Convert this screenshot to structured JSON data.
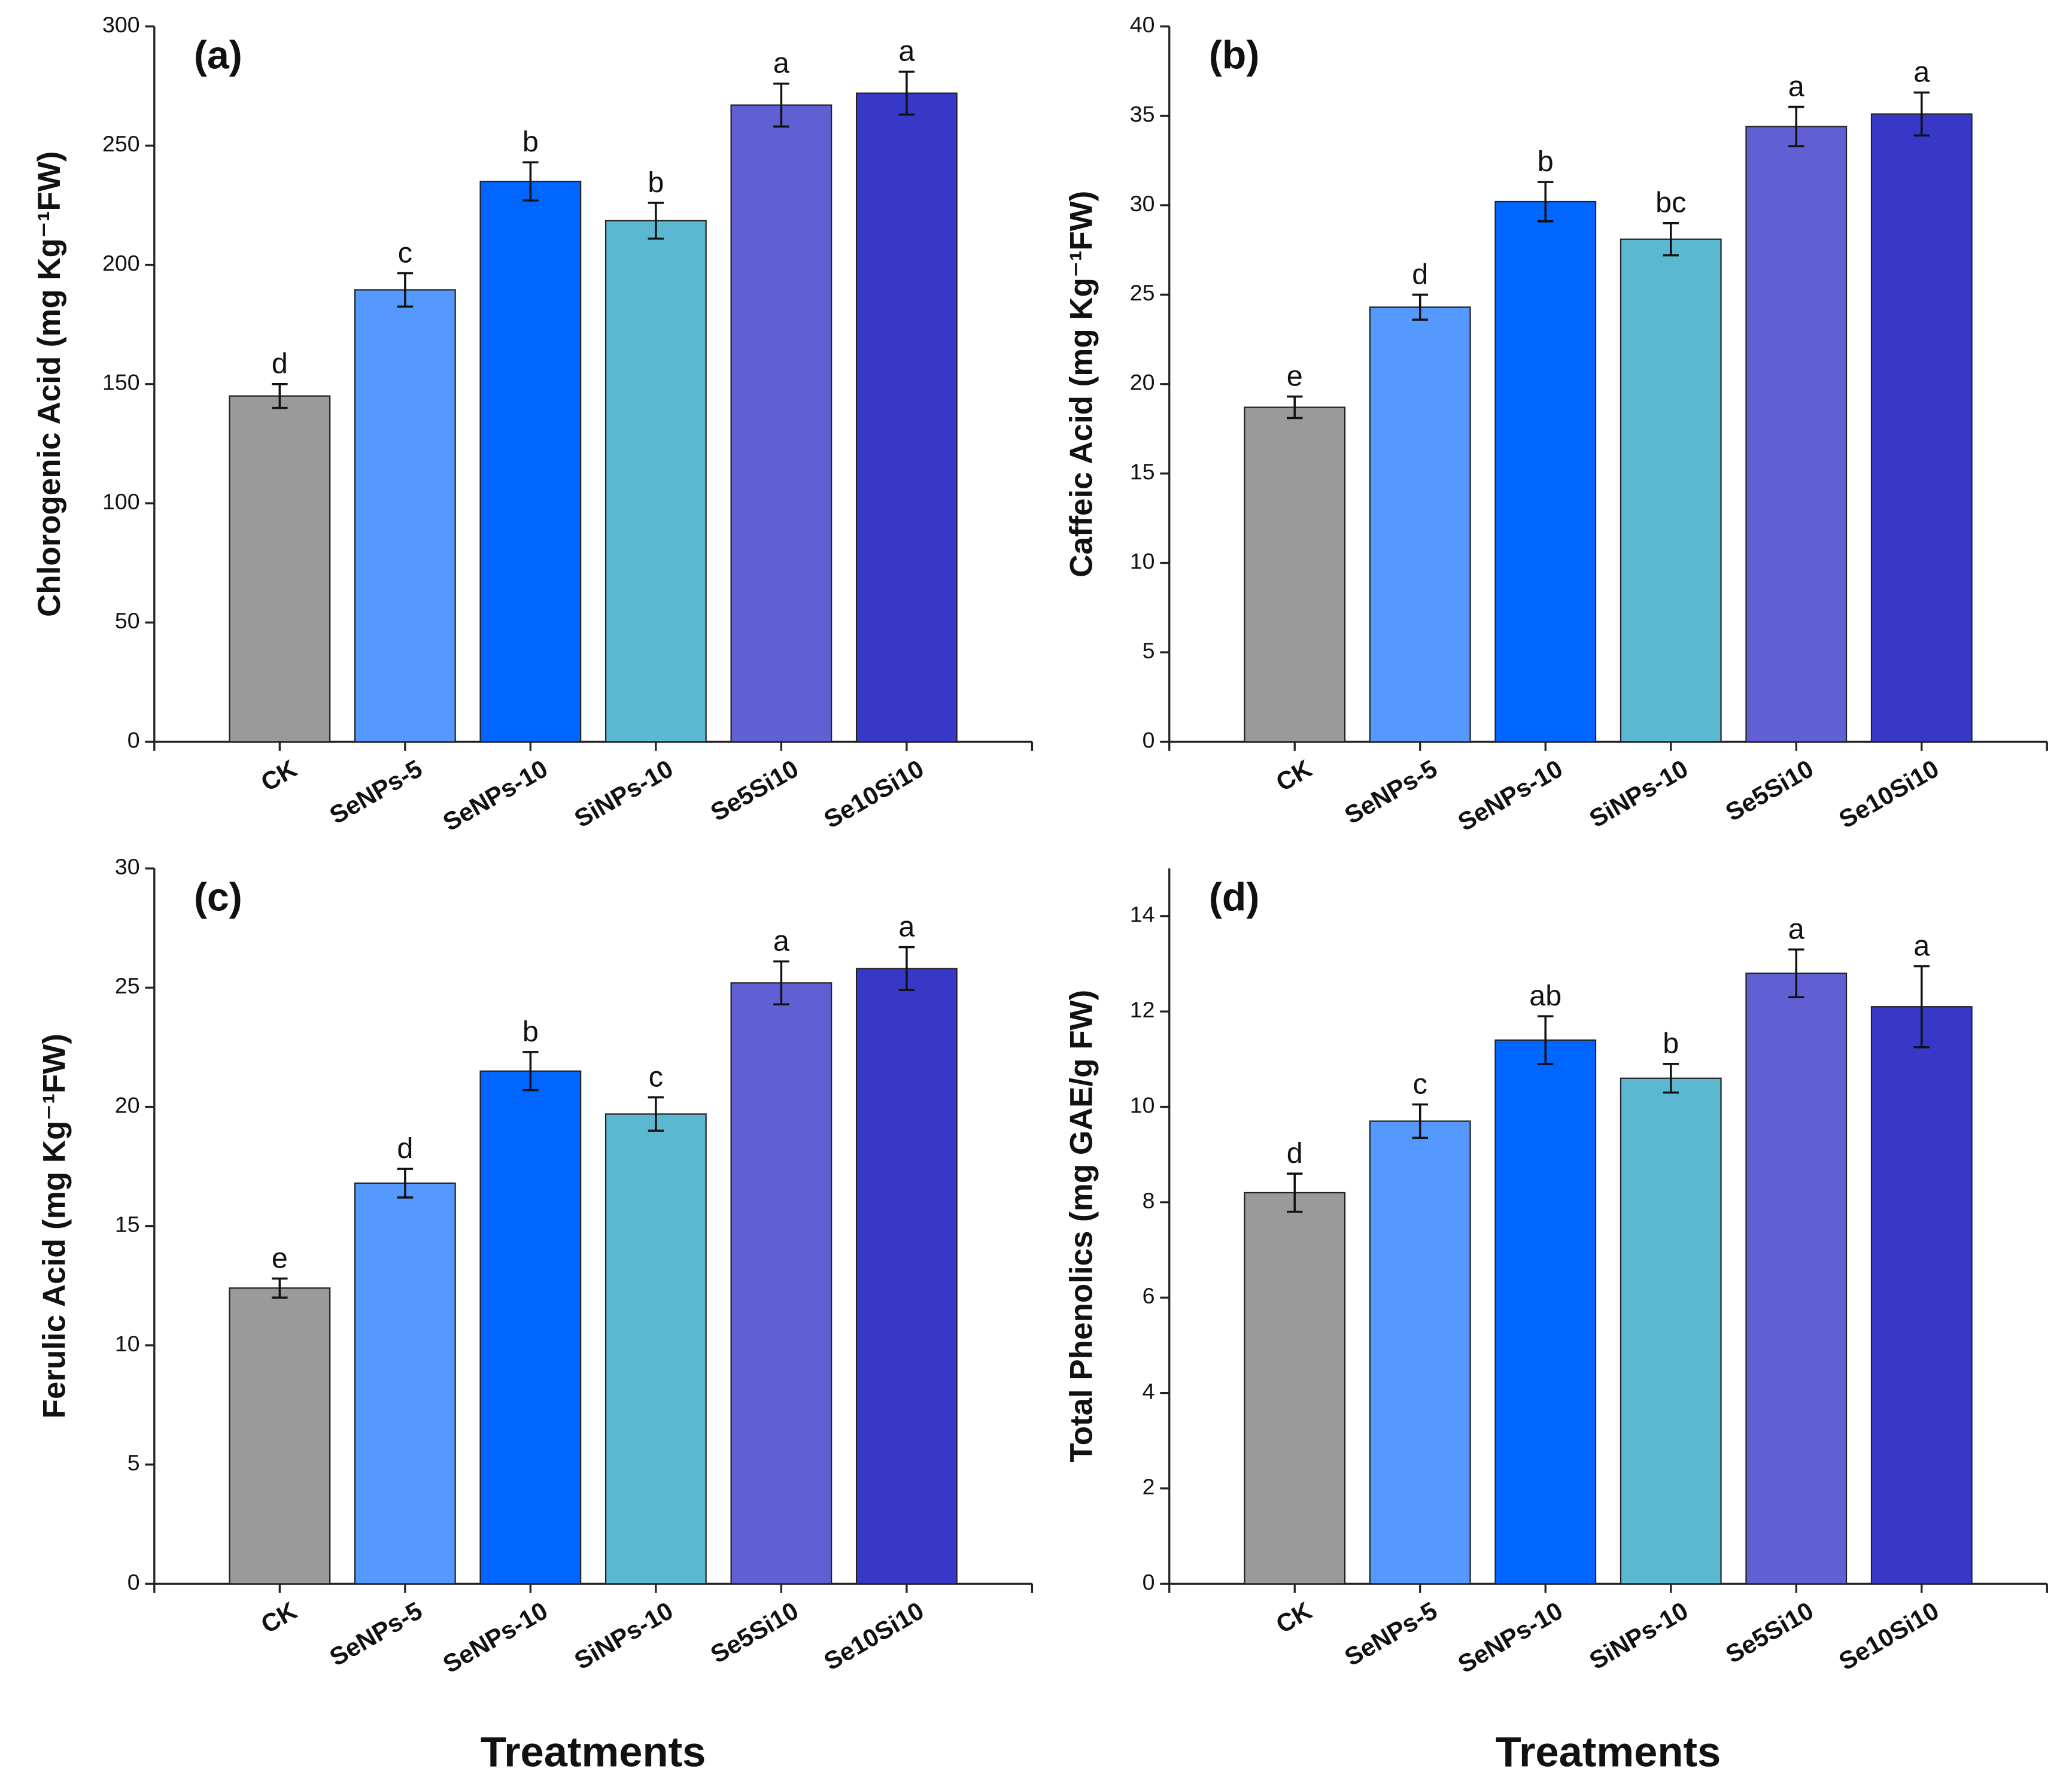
{
  "chart_data": [
    {
      "type": "bar",
      "panel_label": "(a)",
      "ylabel": "Chlorogenic Acid (mg Kg⁻¹FW)",
      "categories": [
        "CK",
        "SeNPs-5",
        "SeNPs-10",
        "SiNPs-10",
        "Se5Si10",
        "Se10Si10"
      ],
      "values": [
        145,
        189.5,
        235,
        218.5,
        267,
        272
      ],
      "errors": [
        5,
        7,
        8,
        7.5,
        9,
        9
      ],
      "letters": [
        "d",
        "c",
        "b",
        "b",
        "a",
        "a"
      ],
      "colors": [
        "#9a9a9a",
        "#5599ff",
        "#0066ff",
        "#5bb8d0",
        "#6060d4",
        "#3838c8"
      ],
      "ylim": [
        0,
        300
      ],
      "yticks": [
        0,
        50,
        100,
        150,
        200,
        250,
        300
      ]
    },
    {
      "type": "bar",
      "panel_label": "(b)",
      "ylabel": "Caffeic Acid (mg Kg⁻¹FW)",
      "categories": [
        "CK",
        "SeNPs-5",
        "SeNPs-10",
        "SiNPs-10",
        "Se5Si10",
        "Se10Si10"
      ],
      "values": [
        18.7,
        24.3,
        30.2,
        28.1,
        34.4,
        35.1
      ],
      "errors": [
        0.6,
        0.7,
        1.1,
        0.9,
        1.1,
        1.2
      ],
      "letters": [
        "e",
        "d",
        "b",
        "bc",
        "a",
        "a"
      ],
      "colors": [
        "#9a9a9a",
        "#5599ff",
        "#0066ff",
        "#5bb8d0",
        "#6060d4",
        "#3838c8"
      ],
      "ylim": [
        0,
        40
      ],
      "yticks": [
        0,
        5,
        10,
        15,
        20,
        25,
        30,
        35,
        40
      ]
    },
    {
      "type": "bar",
      "panel_label": "(c)",
      "ylabel": "Ferulic Acid (mg Kg⁻¹FW)",
      "xlabel": "Treatments",
      "categories": [
        "CK",
        "SeNPs-5",
        "SeNPs-10",
        "SiNPs-10",
        "Se5Si10",
        "Se10Si10"
      ],
      "values": [
        12.4,
        16.8,
        21.5,
        19.7,
        25.2,
        25.8
      ],
      "errors": [
        0.4,
        0.6,
        0.8,
        0.7,
        0.9,
        0.9
      ],
      "letters": [
        "e",
        "d",
        "b",
        "c",
        "a",
        "a"
      ],
      "colors": [
        "#9a9a9a",
        "#5599ff",
        "#0066ff",
        "#5bb8d0",
        "#6060d4",
        "#3838c8"
      ],
      "ylim": [
        0,
        30
      ],
      "yticks": [
        0,
        5,
        10,
        15,
        20,
        25,
        30
      ]
    },
    {
      "type": "bar",
      "panel_label": "(d)",
      "ylabel": "Total Phenolics (mg GAE/g FW)",
      "xlabel": "Treatments",
      "categories": [
        "CK",
        "SeNPs-5",
        "SeNPs-10",
        "SiNPs-10",
        "Se5Si10",
        "Se10Si10"
      ],
      "values": [
        8.2,
        9.7,
        11.4,
        10.6,
        12.8,
        12.1
      ],
      "errors": [
        0.4,
        0.35,
        0.5,
        0.3,
        0.5,
        0.85
      ],
      "letters": [
        "d",
        "c",
        "ab",
        "b",
        "a",
        "a"
      ],
      "colors": [
        "#9a9a9a",
        "#5599ff",
        "#0066ff",
        "#5bb8d0",
        "#6060d4",
        "#3838c8"
      ],
      "ylim": [
        0,
        15
      ],
      "yticks": [
        0,
        2,
        4,
        6,
        8,
        10,
        12,
        14
      ]
    }
  ]
}
